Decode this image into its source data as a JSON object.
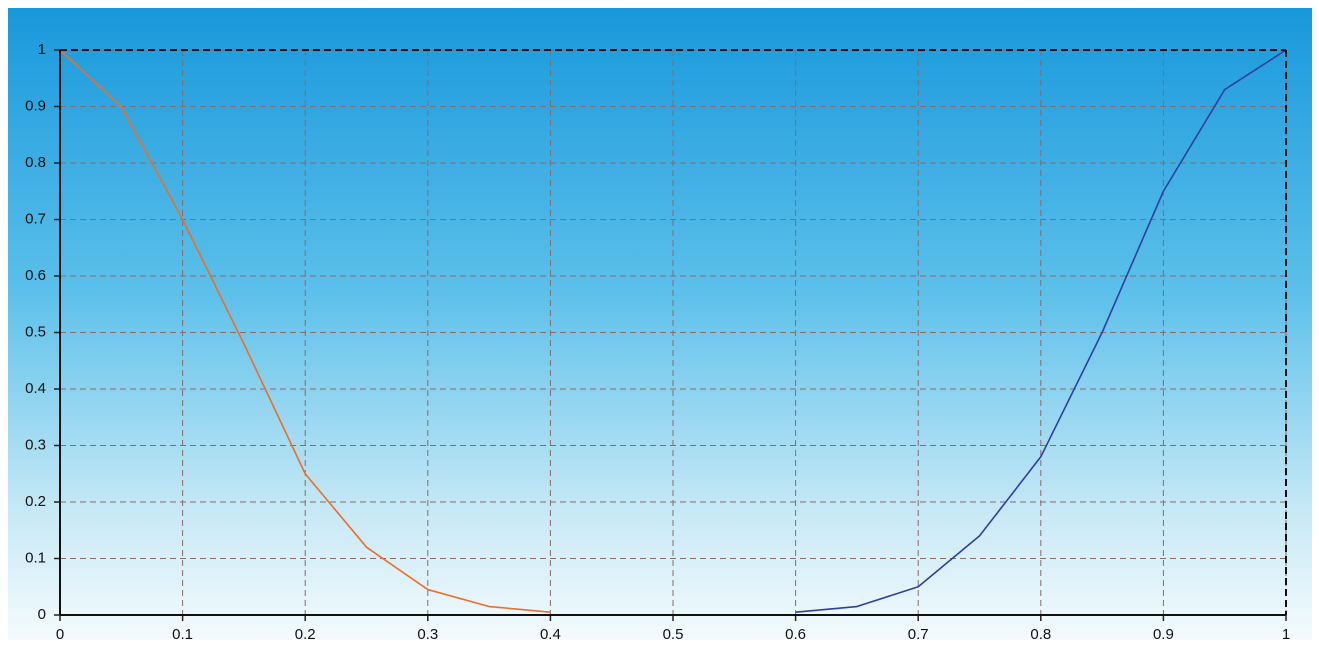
{
  "chart_data": {
    "type": "line",
    "x": [
      0,
      0.05,
      0.1,
      0.15,
      0.2,
      0.25,
      0.3,
      0.35,
      0.4,
      0.45,
      0.5,
      0.55,
      0.6,
      0.65,
      0.7,
      0.75,
      0.8,
      0.85,
      0.9,
      0.95,
      1
    ],
    "series": [
      {
        "color": "#e8702a",
        "values": [
          1,
          0.9,
          0.7,
          0.48,
          0.25,
          0.12,
          0.045,
          0.015,
          0.005,
          null,
          null,
          null,
          null,
          null,
          null,
          null,
          null,
          null,
          null,
          null,
          null
        ]
      },
      {
        "color": "#2f3f9f",
        "values": [
          null,
          null,
          null,
          null,
          null,
          null,
          null,
          null,
          null,
          null,
          null,
          null,
          0.005,
          0.015,
          0.05,
          0.14,
          0.28,
          0.5,
          0.75,
          0.93,
          1
        ]
      }
    ],
    "xlim": [
      0,
      1
    ],
    "ylim": [
      0,
      1
    ],
    "xticks": [
      0,
      0.1,
      0.2,
      0.3,
      0.4,
      0.5,
      0.6,
      0.7,
      0.8,
      0.9,
      1
    ],
    "yticks": [
      0,
      0.1,
      0.2,
      0.3,
      0.4,
      0.5,
      0.6,
      0.7,
      0.8,
      0.9,
      1
    ],
    "grid": true
  }
}
